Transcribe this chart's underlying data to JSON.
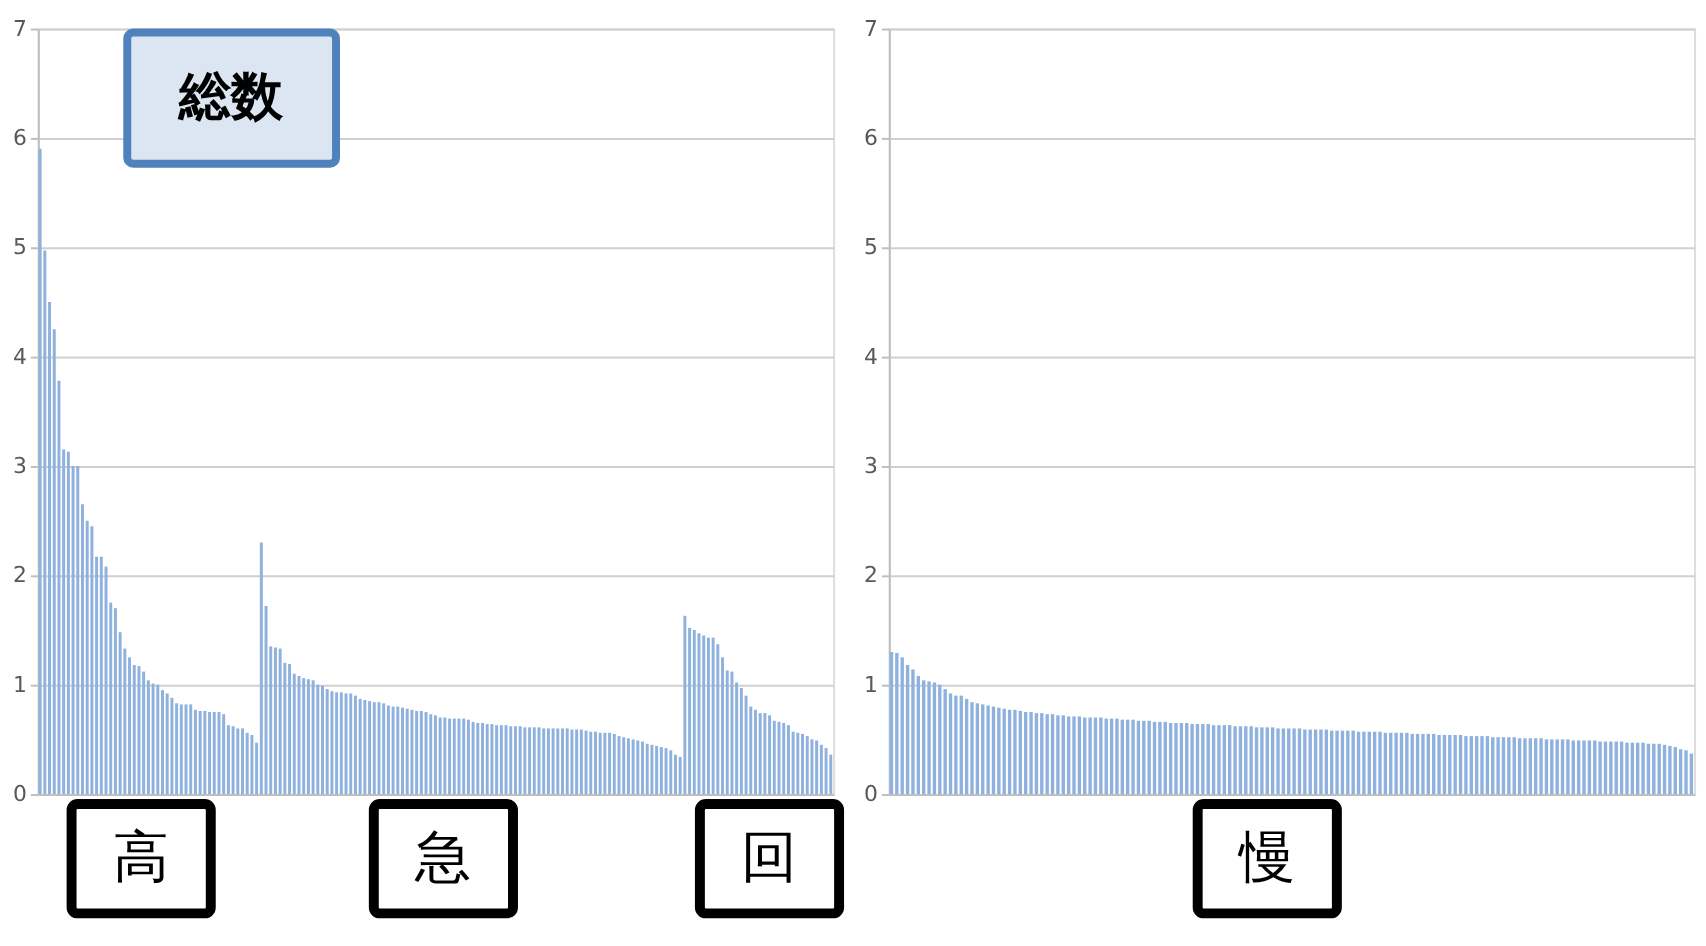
{
  "chart_data": [
    {
      "type": "bar",
      "title": "総数",
      "annotations": [
        "高",
        "急",
        "回"
      ],
      "ylim": [
        0,
        7
      ],
      "yticks": [
        0,
        1,
        2,
        3,
        4,
        5,
        6,
        7
      ],
      "grid": "y",
      "tick_labels": "y",
      "color": "#8eb1dd",
      "values": [
        5.9,
        4.97,
        4.5,
        4.25,
        3.78,
        3.15,
        3.13,
        3.0,
        3.0,
        2.65,
        2.5,
        2.45,
        2.17,
        2.17,
        2.08,
        1.75,
        1.7,
        1.48,
        1.33,
        1.25,
        1.18,
        1.17,
        1.12,
        1.04,
        1.01,
        1.0,
        0.95,
        0.92,
        0.88,
        0.83,
        0.82,
        0.82,
        0.82,
        0.77,
        0.76,
        0.76,
        0.75,
        0.75,
        0.75,
        0.73,
        0.63,
        0.62,
        0.6,
        0.6,
        0.56,
        0.54,
        0.47,
        2.3,
        1.72,
        1.35,
        1.34,
        1.33,
        1.2,
        1.19,
        1.1,
        1.08,
        1.06,
        1.05,
        1.04,
        1.0,
        0.99,
        0.96,
        0.94,
        0.93,
        0.93,
        0.92,
        0.92,
        0.9,
        0.87,
        0.86,
        0.85,
        0.84,
        0.84,
        0.83,
        0.81,
        0.8,
        0.8,
        0.79,
        0.78,
        0.77,
        0.76,
        0.76,
        0.75,
        0.73,
        0.72,
        0.7,
        0.7,
        0.69,
        0.69,
        0.69,
        0.69,
        0.68,
        0.66,
        0.65,
        0.65,
        0.64,
        0.64,
        0.63,
        0.63,
        0.63,
        0.62,
        0.62,
        0.62,
        0.61,
        0.61,
        0.61,
        0.61,
        0.6,
        0.6,
        0.6,
        0.6,
        0.6,
        0.6,
        0.59,
        0.59,
        0.59,
        0.58,
        0.57,
        0.57,
        0.56,
        0.56,
        0.56,
        0.55,
        0.53,
        0.52,
        0.51,
        0.5,
        0.49,
        0.48,
        0.46,
        0.45,
        0.44,
        0.43,
        0.42,
        0.4,
        0.36,
        0.34,
        1.63,
        1.52,
        1.5,
        1.47,
        1.45,
        1.43,
        1.43,
        1.37,
        1.25,
        1.13,
        1.12,
        1.02,
        0.97,
        0.9,
        0.8,
        0.77,
        0.74,
        0.74,
        0.72,
        0.67,
        0.66,
        0.65,
        0.63,
        0.57,
        0.56,
        0.55,
        0.53,
        0.5,
        0.49,
        0.45,
        0.42,
        0.36
      ]
    },
    {
      "type": "bar",
      "annotations": [
        "慢"
      ],
      "ylim": [
        0,
        7
      ],
      "yticks": [
        0,
        1,
        2,
        3,
        4,
        5,
        6,
        7
      ],
      "grid": "y",
      "tick_labels": "y",
      "color": "#8eb1dd",
      "values": [
        1.3,
        1.29,
        1.25,
        1.18,
        1.14,
        1.08,
        1.04,
        1.03,
        1.02,
        1.0,
        0.96,
        0.92,
        0.9,
        0.9,
        0.87,
        0.84,
        0.83,
        0.82,
        0.81,
        0.8,
        0.79,
        0.78,
        0.77,
        0.77,
        0.76,
        0.75,
        0.75,
        0.74,
        0.74,
        0.73,
        0.73,
        0.72,
        0.72,
        0.71,
        0.71,
        0.71,
        0.7,
        0.7,
        0.7,
        0.7,
        0.69,
        0.69,
        0.69,
        0.68,
        0.68,
        0.68,
        0.67,
        0.67,
        0.67,
        0.66,
        0.66,
        0.66,
        0.65,
        0.65,
        0.65,
        0.65,
        0.64,
        0.64,
        0.64,
        0.64,
        0.63,
        0.63,
        0.63,
        0.63,
        0.62,
        0.62,
        0.62,
        0.62,
        0.61,
        0.61,
        0.61,
        0.61,
        0.6,
        0.6,
        0.6,
        0.6,
        0.6,
        0.59,
        0.59,
        0.59,
        0.59,
        0.59,
        0.58,
        0.58,
        0.58,
        0.58,
        0.58,
        0.57,
        0.57,
        0.57,
        0.57,
        0.57,
        0.56,
        0.56,
        0.56,
        0.56,
        0.56,
        0.55,
        0.55,
        0.55,
        0.55,
        0.55,
        0.54,
        0.54,
        0.54,
        0.54,
        0.54,
        0.53,
        0.53,
        0.53,
        0.53,
        0.53,
        0.52,
        0.52,
        0.52,
        0.52,
        0.52,
        0.51,
        0.51,
        0.51,
        0.51,
        0.51,
        0.5,
        0.5,
        0.5,
        0.5,
        0.5,
        0.49,
        0.49,
        0.49,
        0.49,
        0.49,
        0.48,
        0.48,
        0.48,
        0.48,
        0.48,
        0.47,
        0.47,
        0.47,
        0.47,
        0.46,
        0.46,
        0.46,
        0.45,
        0.44,
        0.43,
        0.41,
        0.4,
        0.37
      ]
    }
  ]
}
